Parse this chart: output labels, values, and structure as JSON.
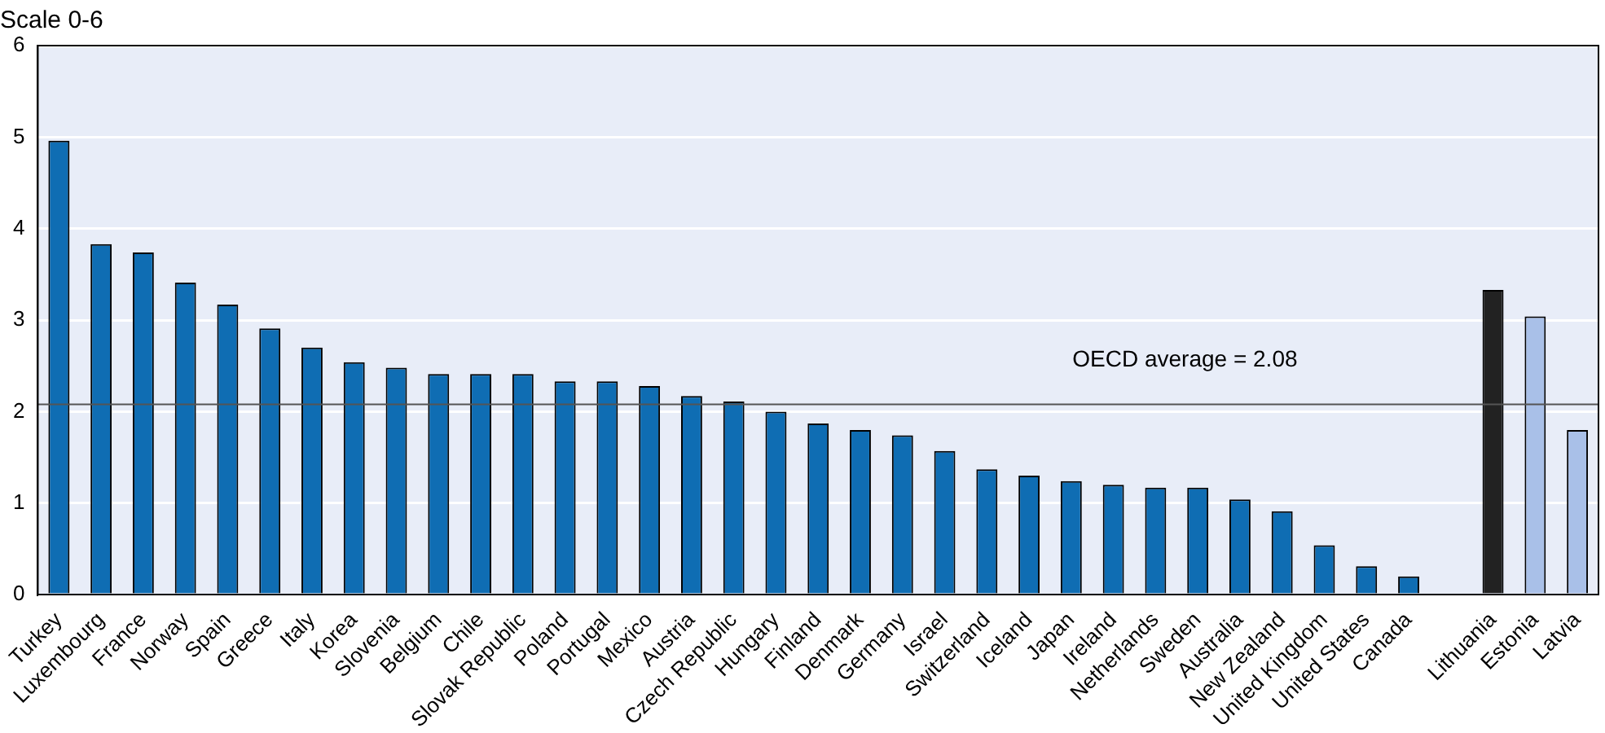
{
  "chart_data": {
    "type": "bar",
    "ylabel": "Scale 0-6",
    "categories": [
      "Turkey",
      "Luxembourg",
      "France",
      "Norway",
      "Spain",
      "Greece",
      "Italy",
      "Korea",
      "Slovenia",
      "Belgium",
      "Chile",
      "Slovak Republic",
      "Poland",
      "Portugal",
      "Mexico",
      "Austria",
      "Czech Republic",
      "Hungary",
      "Finland",
      "Denmark",
      "Germany",
      "Israel",
      "Switzerland",
      "Iceland",
      "Japan",
      "Ireland",
      "Netherlands",
      "Sweden",
      "Australia",
      "New Zealand",
      "United Kingdom",
      "United States",
      "Canada",
      null,
      "Lithuania",
      "Estonia",
      "Latvia"
    ],
    "values": [
      4.96,
      3.83,
      3.74,
      3.41,
      3.17,
      2.91,
      2.7,
      2.54,
      2.48,
      2.41,
      2.41,
      2.41,
      2.33,
      2.33,
      2.28,
      2.17,
      2.11,
      2.0,
      1.87,
      1.8,
      1.74,
      1.57,
      1.37,
      1.3,
      1.24,
      1.2,
      1.17,
      1.17,
      1.04,
      0.91,
      0.54,
      0.31,
      0.2,
      null,
      3.33,
      3.04,
      1.8
    ],
    "colors": [
      "#0f6db3",
      "#0f6db3",
      "#0f6db3",
      "#0f6db3",
      "#0f6db3",
      "#0f6db3",
      "#0f6db3",
      "#0f6db3",
      "#0f6db3",
      "#0f6db3",
      "#0f6db3",
      "#0f6db3",
      "#0f6db3",
      "#0f6db3",
      "#0f6db3",
      "#0f6db3",
      "#0f6db3",
      "#0f6db3",
      "#0f6db3",
      "#0f6db3",
      "#0f6db3",
      "#0f6db3",
      "#0f6db3",
      "#0f6db3",
      "#0f6db3",
      "#0f6db3",
      "#0f6db3",
      "#0f6db3",
      "#0f6db3",
      "#0f6db3",
      "#0f6db3",
      "#0f6db3",
      "#0f6db3",
      "#0f6db3",
      "#222222",
      "#a9c0e8",
      "#a9c0e8"
    ],
    "ylim": [
      0,
      6
    ],
    "yticks": [
      0,
      1,
      2,
      3,
      4,
      5,
      6
    ],
    "grid": "y",
    "legend": false,
    "ref_lines": [
      {
        "axis": "y",
        "value": 2.08,
        "label": "OECD average = 2.08",
        "color": "#555555"
      }
    ]
  }
}
